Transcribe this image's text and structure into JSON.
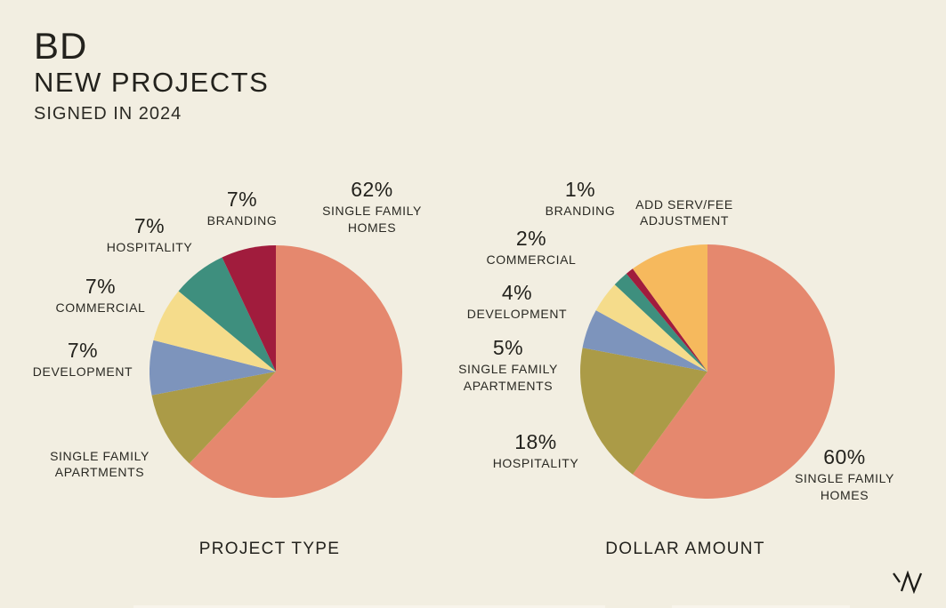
{
  "page": {
    "title_line1": "BD",
    "title_line2": "NEW PROJECTS",
    "title_line3": "SIGNED IN 2024",
    "background_color": "#f2eee1",
    "text_color": "#23221d",
    "watermark_icon": "w-logo-mark"
  },
  "chart_data": [
    {
      "type": "pie",
      "title": "PROJECT TYPE",
      "legend": "none",
      "start_angle_deg": 0,
      "direction": "clockwise",
      "unlabeled_values_estimated": true,
      "slices": [
        {
          "label": "SINGLE FAMILY HOMES",
          "value": 62,
          "pct_label": "62%",
          "color": "#e5886e"
        },
        {
          "label": "SINGLE FAMILY APARTMENTS",
          "value": 10,
          "pct_label": "",
          "color": "#ab9b47"
        },
        {
          "label": "DEVELOPMENT",
          "value": 7,
          "pct_label": "7%",
          "color": "#7d94bc"
        },
        {
          "label": "COMMERCIAL",
          "value": 7,
          "pct_label": "7%",
          "color": "#f5dc8b"
        },
        {
          "label": "HOSPITALITY",
          "value": 7,
          "pct_label": "7%",
          "color": "#3e8f7e"
        },
        {
          "label": "BRANDING",
          "value": 7,
          "pct_label": "7%",
          "color": "#a11c3d"
        }
      ]
    },
    {
      "type": "pie",
      "title": "DOLLAR AMOUNT",
      "legend": "none",
      "start_angle_deg": 0,
      "direction": "clockwise",
      "unlabeled_values_estimated": true,
      "slices": [
        {
          "label": "SINGLE FAMILY HOMES",
          "value": 60,
          "pct_label": "60%",
          "color": "#e5886e"
        },
        {
          "label": "HOSPITALITY",
          "value": 18,
          "pct_label": "18%",
          "color": "#ab9b47"
        },
        {
          "label": "SINGLE FAMILY APARTMENTS",
          "value": 5,
          "pct_label": "5%",
          "color": "#7d94bc"
        },
        {
          "label": "DEVELOPMENT",
          "value": 4,
          "pct_label": "4%",
          "color": "#f5dc8b"
        },
        {
          "label": "COMMERCIAL",
          "value": 2,
          "pct_label": "2%",
          "color": "#3e8f7e"
        },
        {
          "label": "BRANDING",
          "value": 1,
          "pct_label": "1%",
          "color": "#a11c3d"
        },
        {
          "label": "ADD SERV/FEE ADJUSTMENT",
          "value": 10,
          "pct_label": "",
          "color": "#f6b95d"
        }
      ]
    }
  ]
}
